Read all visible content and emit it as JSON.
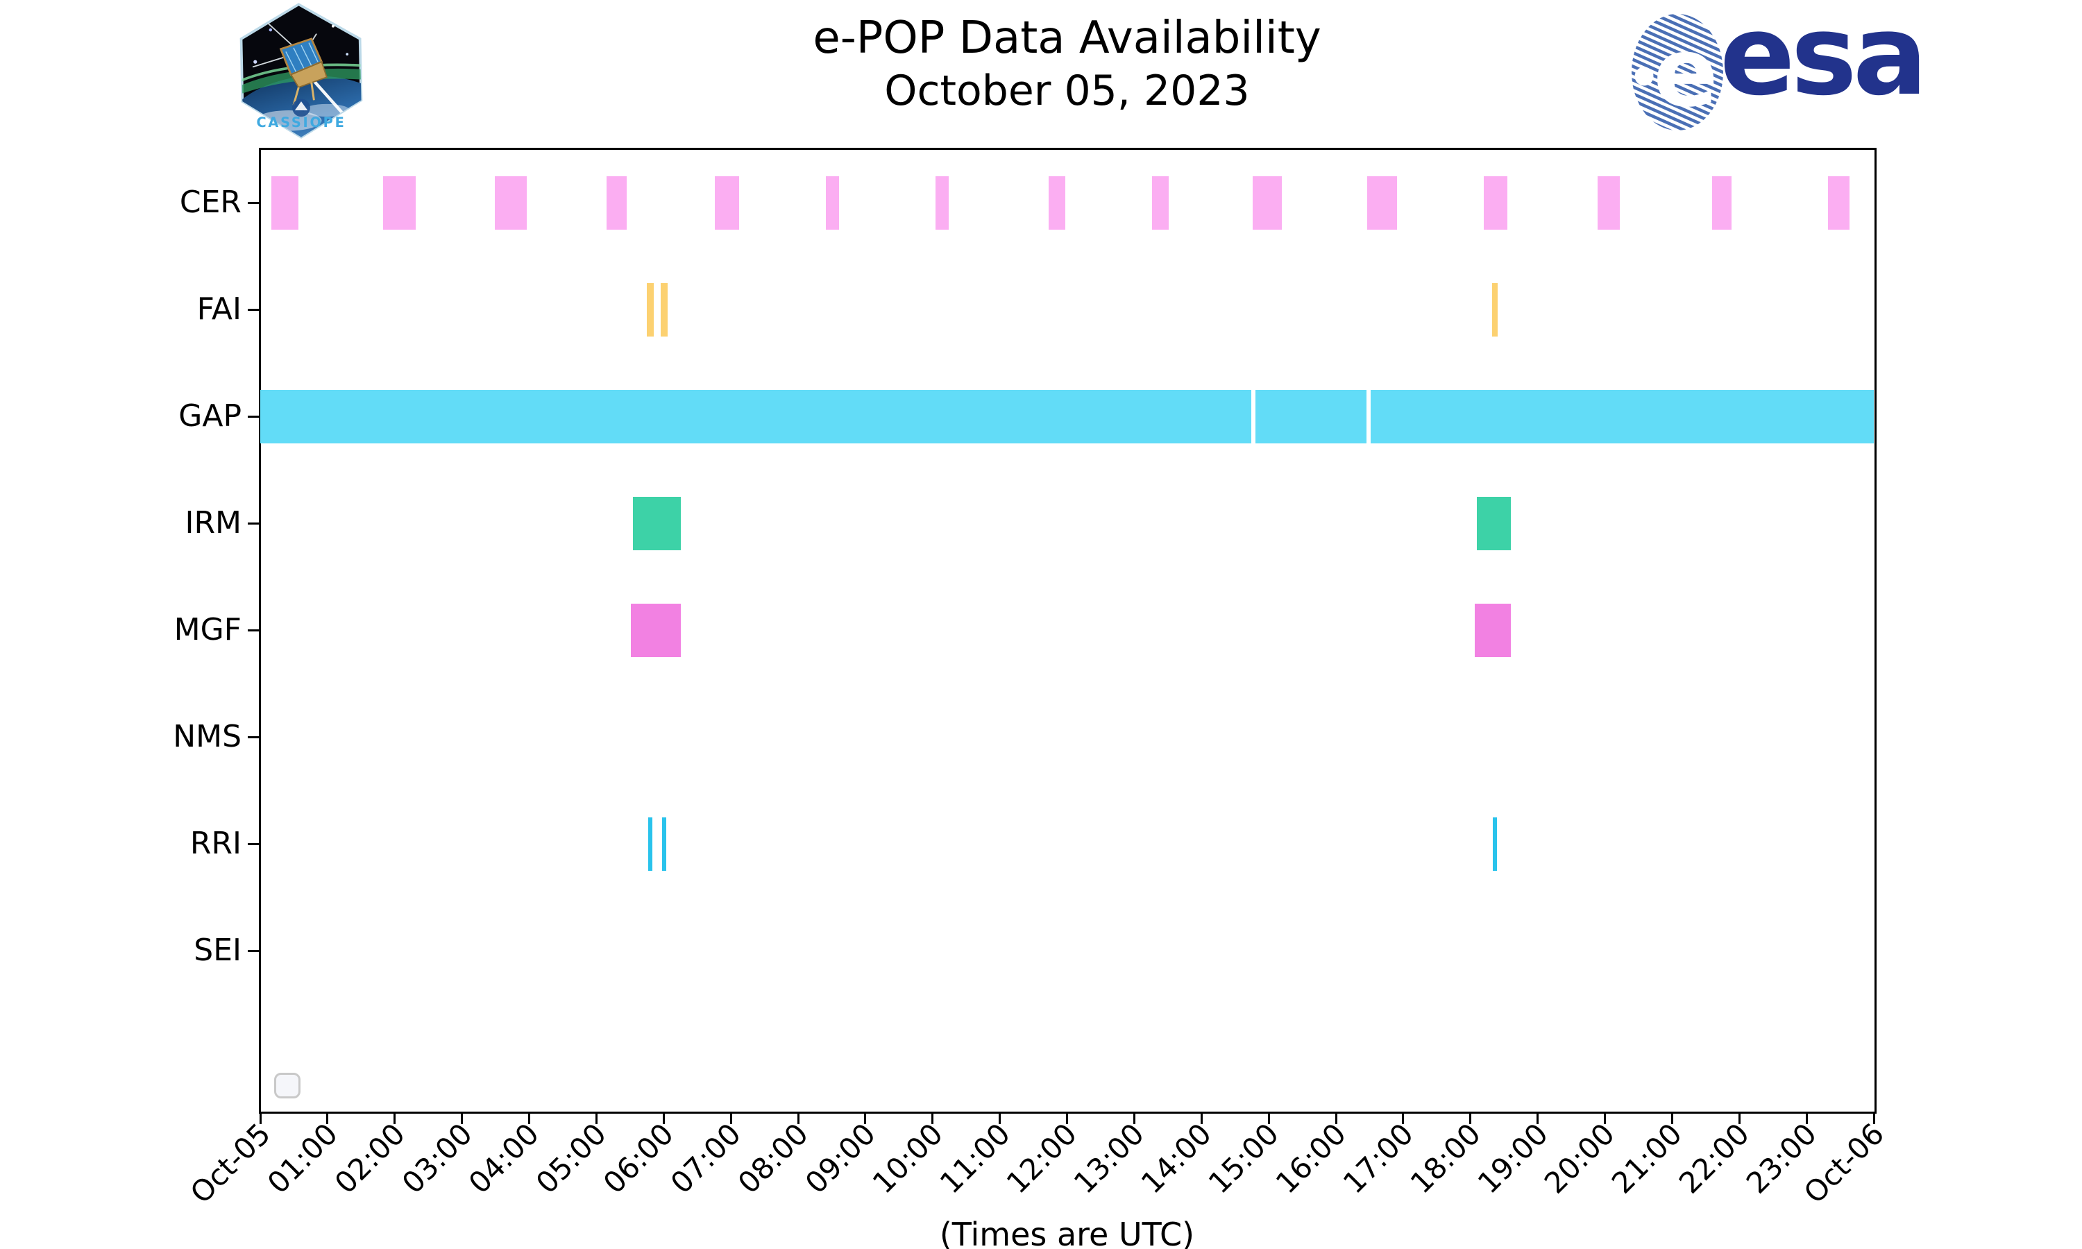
{
  "header": {
    "title_line1": "e-POP Data Availability",
    "title_line2": "October 05, 2023",
    "cassiope_label": "CASSIOPE",
    "esa_word": "esa",
    "esa_emblem_letter": "e"
  },
  "footer": {
    "xlabel": "(Times are UTC)"
  },
  "colors": {
    "cer": "#fbaef2",
    "fai": "#fcd171",
    "gap": "#62dcf7",
    "irm": "#3dd2a7",
    "mgf": "#f281e2",
    "rri": "#29c3ec",
    "axis": "#000000",
    "esa_blue": "#22338c",
    "cassiope_blue": "#3fa9e0"
  },
  "chart_data": {
    "type": "timeline",
    "title": "e-POP Data Availability",
    "subtitle": "October 05, 2023",
    "xlabel": "(Times are UTC)",
    "x_axis_hours": [
      0,
      24
    ],
    "x_ticks": [
      "Oct-05",
      "01:00",
      "02:00",
      "03:00",
      "04:00",
      "05:00",
      "06:00",
      "07:00",
      "08:00",
      "09:00",
      "10:00",
      "11:00",
      "12:00",
      "13:00",
      "14:00",
      "15:00",
      "16:00",
      "17:00",
      "18:00",
      "19:00",
      "20:00",
      "21:00",
      "22:00",
      "23:00",
      "Oct-06"
    ],
    "grid": false,
    "legend": "none",
    "rows": [
      {
        "label": "CER",
        "color": "#fbaef2",
        "intervals": [
          [
            0.16,
            0.57
          ],
          [
            1.83,
            2.31
          ],
          [
            3.49,
            3.96
          ],
          [
            5.15,
            5.45
          ],
          [
            6.76,
            7.12
          ],
          [
            8.41,
            8.61
          ],
          [
            10.04,
            10.24
          ],
          [
            11.73,
            11.97
          ],
          [
            13.26,
            13.51
          ],
          [
            14.76,
            15.19
          ],
          [
            16.46,
            16.91
          ],
          [
            18.2,
            18.55
          ],
          [
            19.89,
            20.22
          ],
          [
            21.59,
            21.88
          ],
          [
            23.32,
            23.64
          ]
        ]
      },
      {
        "label": "FAI",
        "color": "#fcd171",
        "intervals": [
          [
            5.75,
            5.85
          ],
          [
            5.96,
            6.06
          ],
          [
            18.32,
            18.4
          ]
        ]
      },
      {
        "label": "GAP",
        "color": "#62dcf7",
        "intervals": [
          [
            0.0,
            14.74
          ],
          [
            14.8,
            16.45
          ],
          [
            16.52,
            24.0
          ]
        ]
      },
      {
        "label": "IRM",
        "color": "#3dd2a7",
        "intervals": [
          [
            5.54,
            6.26
          ],
          [
            18.1,
            18.6
          ]
        ]
      },
      {
        "label": "MGF",
        "color": "#f281e2",
        "intervals": [
          [
            5.51,
            6.26
          ],
          [
            18.06,
            18.6
          ]
        ]
      },
      {
        "label": "NMS",
        "color": "#999999",
        "intervals": []
      },
      {
        "label": "RRI",
        "color": "#29c3ec",
        "intervals": [
          [
            5.77,
            5.83
          ],
          [
            5.98,
            6.04
          ],
          [
            18.33,
            18.39
          ]
        ]
      },
      {
        "label": "SEI",
        "color": "#999999",
        "intervals": []
      }
    ]
  }
}
